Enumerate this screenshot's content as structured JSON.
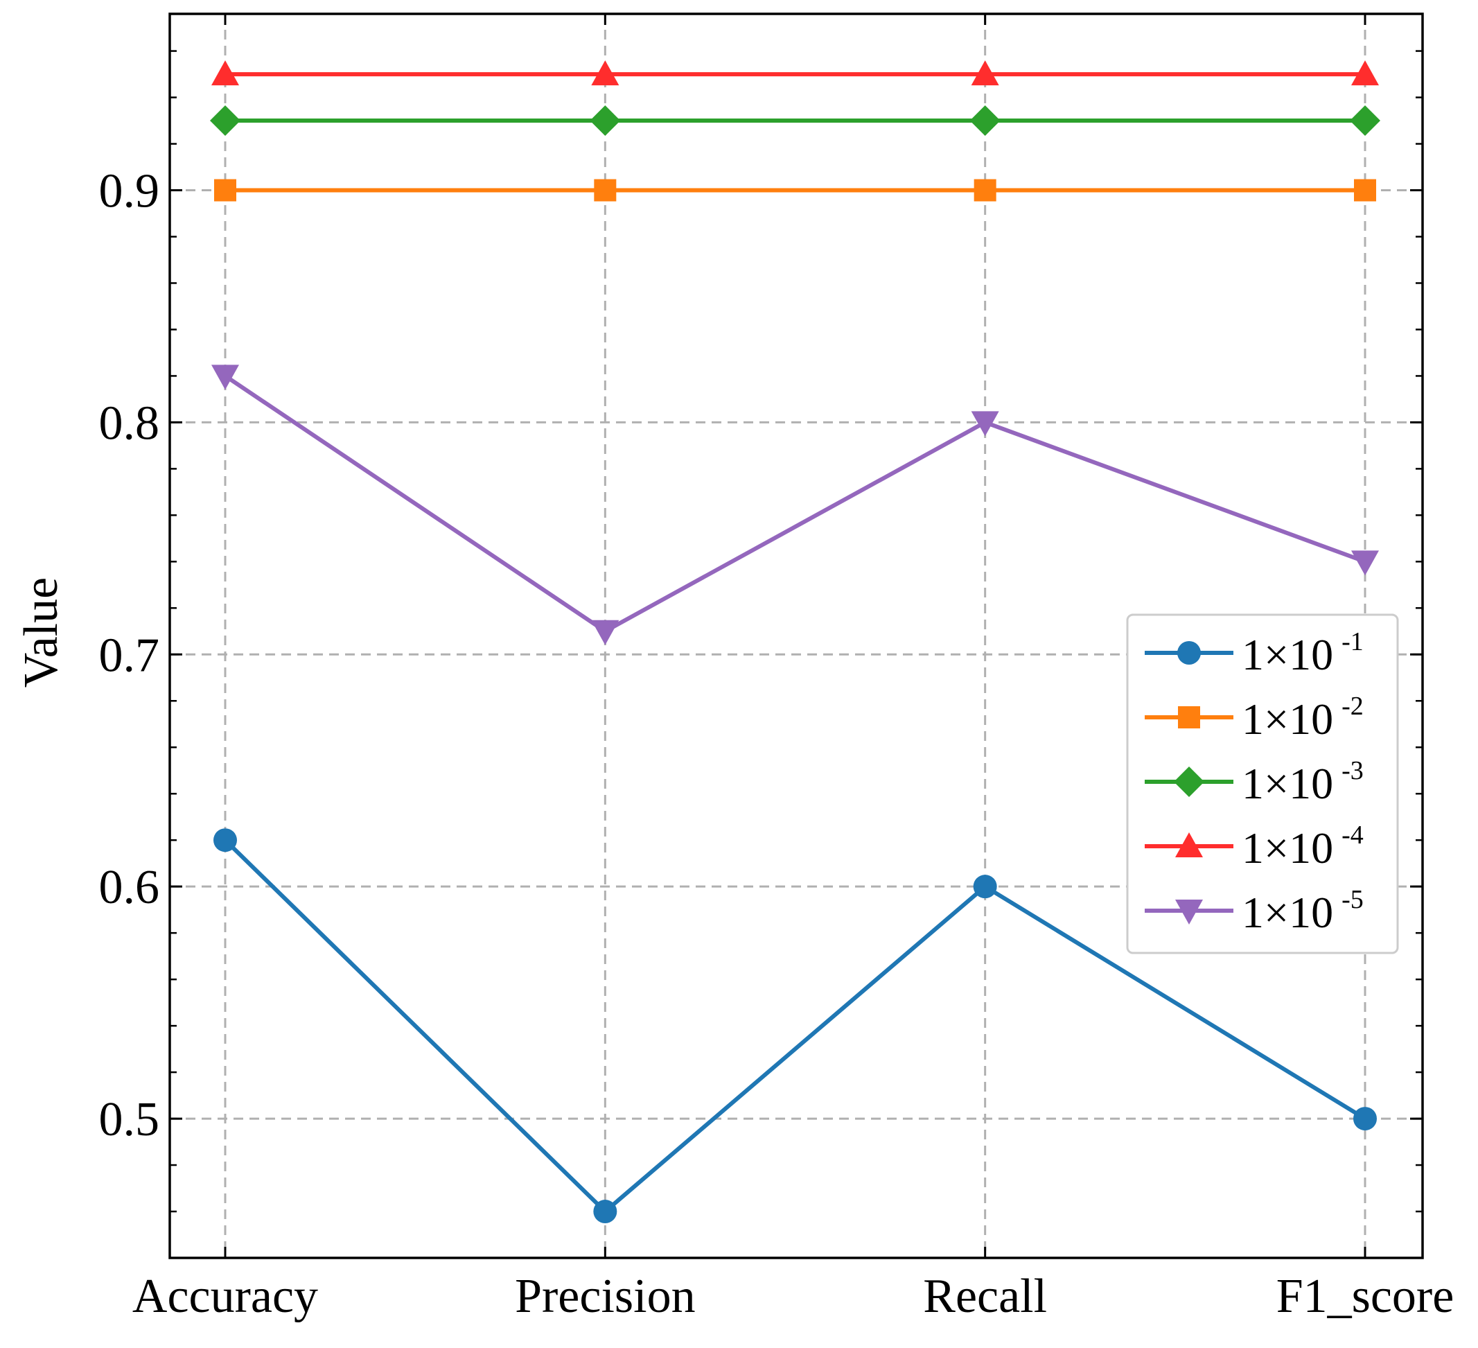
{
  "chart_data": {
    "type": "line",
    "categories": [
      "Accuracy",
      "Precision",
      "Recall",
      "F1_score"
    ],
    "ylabel": "Value",
    "xlabel": "",
    "ylim": [
      0.44,
      0.976
    ],
    "yticks": [
      "0.5",
      "0.6",
      "0.7",
      "0.8",
      "0.9"
    ],
    "grid": true,
    "legend_position": "center-right",
    "series": [
      {
        "name": "1×10 -1",
        "base": "1×10",
        "exp": "-1",
        "color": "#1f77b4",
        "marker": "circle",
        "values": [
          0.62,
          0.46,
          0.6,
          0.5
        ]
      },
      {
        "name": "1×10 -2",
        "base": "1×10",
        "exp": "-2",
        "color": "#ff7f0e",
        "marker": "square",
        "values": [
          0.9,
          0.9,
          0.9,
          0.9
        ]
      },
      {
        "name": "1×10 -3",
        "base": "1×10",
        "exp": "-3",
        "color": "#2ca02c",
        "marker": "diamond",
        "values": [
          0.93,
          0.93,
          0.93,
          0.93
        ]
      },
      {
        "name": "1×10 -4",
        "base": "1×10",
        "exp": "-4",
        "color": "#ff2d2d",
        "marker": "triangle-up",
        "values": [
          0.95,
          0.95,
          0.95,
          0.95
        ]
      },
      {
        "name": "1×10 -5",
        "base": "1×10",
        "exp": "-5",
        "color": "#9467bd",
        "marker": "triangle-down",
        "values": [
          0.82,
          0.71,
          0.8,
          0.74
        ]
      }
    ]
  }
}
